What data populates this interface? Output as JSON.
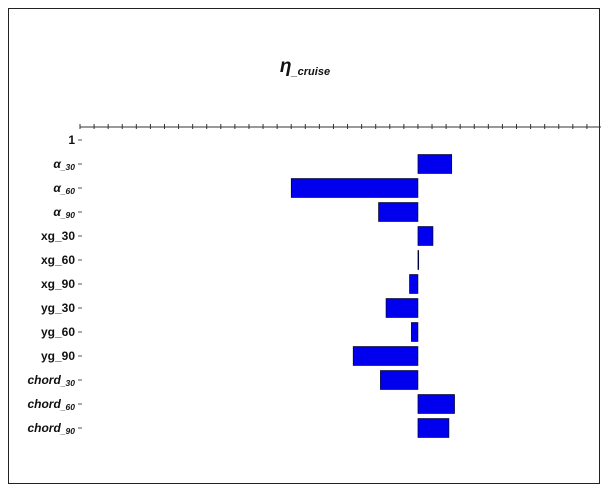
{
  "chart_data": {
    "type": "bar",
    "orientation": "horizontal",
    "title": {
      "main": "η",
      "sub": "_cruise"
    },
    "categories": [
      {
        "main": "1",
        "sub": ""
      },
      {
        "main": "α",
        "sub": "_30",
        "italic": true
      },
      {
        "main": "α",
        "sub": "_60",
        "italic": true
      },
      {
        "main": "α",
        "sub": "_90",
        "italic": true
      },
      {
        "main": "xg_30",
        "sub": ""
      },
      {
        "main": "xg_60",
        "sub": ""
      },
      {
        "main": "xg_90",
        "sub": ""
      },
      {
        "main": "yg_30",
        "sub": ""
      },
      {
        "main": "yg_60",
        "sub": ""
      },
      {
        "main": "yg_90",
        "sub": ""
      },
      {
        "main": "chord",
        "sub": "_30",
        "italic": true
      },
      {
        "main": "chord",
        "sub": "_60",
        "italic": true
      },
      {
        "main": "chord",
        "sub": "_90",
        "italic": true
      }
    ],
    "values": [
      0,
      0.36,
      -1.35,
      -0.42,
      0.16,
      0.0,
      -0.09,
      -0.34,
      -0.07,
      -0.69,
      -0.4,
      0.39,
      0.33
    ],
    "xlim": [
      -3.6,
      1.95
    ],
    "tick_step": 0.15,
    "bar_color": "#0000ee",
    "bar_edge": "#000000",
    "grid": false,
    "legend": "none"
  }
}
